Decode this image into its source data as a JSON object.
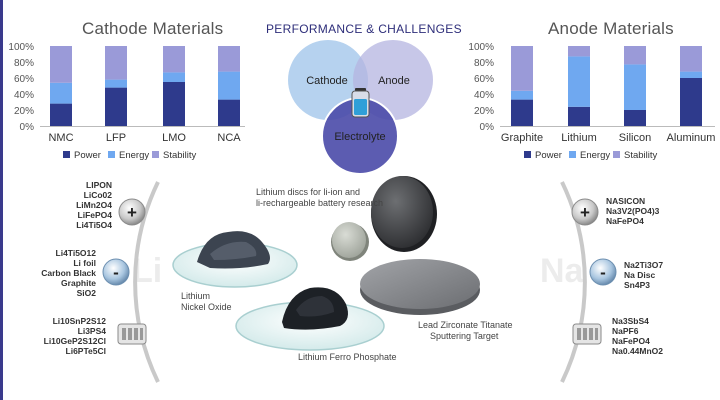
{
  "colors": {
    "power": "#2e3a8c",
    "energy": "#6fa8f0",
    "stability": "#9a9ad8",
    "cathode_circle": "#9ec3ea",
    "anode_circle": "#b4b4e0",
    "electrolyte_circle": "#4a4aa8",
    "accent": "#3a3a8c"
  },
  "cathode_chart": {
    "title": "Cathode Materials",
    "yticks": [
      "100%",
      "80%",
      "60%",
      "40%",
      "20%",
      "0%"
    ]
  },
  "anode_chart": {
    "title": "Anode Materials",
    "yticks": [
      "100%",
      "80%",
      "60%",
      "40%",
      "20%",
      "0%"
    ]
  },
  "legend": {
    "power": "Power",
    "energy": "Energy",
    "stability": "Stability"
  },
  "chart_data": [
    {
      "type": "bar",
      "stacked": true,
      "title": "Cathode Materials",
      "categories": [
        "NMC",
        "LFP",
        "LMO",
        "NCA"
      ],
      "series": [
        {
          "name": "Power",
          "values": [
            28,
            48,
            55,
            33
          ]
        },
        {
          "name": "Energy",
          "values": [
            26,
            10,
            12,
            35
          ]
        },
        {
          "name": "Stability",
          "values": [
            46,
            42,
            33,
            32
          ]
        }
      ],
      "ylim": [
        0,
        100
      ],
      "legend_position": "bottom"
    },
    {
      "type": "bar",
      "stacked": true,
      "title": "Anode Materials",
      "categories": [
        "Graphite",
        "Lithium",
        "Silicon",
        "Aluminum"
      ],
      "series": [
        {
          "name": "Power",
          "values": [
            33,
            24,
            20,
            60
          ]
        },
        {
          "name": "Energy",
          "values": [
            11,
            63,
            57,
            8
          ]
        },
        {
          "name": "Stability",
          "values": [
            56,
            13,
            23,
            32
          ]
        }
      ],
      "ylim": [
        0,
        100
      ],
      "legend_position": "bottom"
    }
  ],
  "venn": {
    "title": "PERFORMANCE & CHALLENGES",
    "cathode": "Cathode",
    "anode": "Anode",
    "electrolyte": "Electrolyte"
  },
  "left_arc": {
    "watermark": "Li",
    "plus_symbol": "+",
    "minus_symbol": "-",
    "cathode_list": [
      "LIPON",
      "LiCo02",
      "LiMn2O4",
      "LiFePO4",
      "Li4Ti5O4"
    ],
    "anode_list": [
      "Li4Ti5O12",
      "Li foil",
      "Carbon Black",
      "Graphite",
      "SiO2"
    ],
    "electrolyte_list": [
      "Li10SnP2S12",
      "Li3PS4",
      "Li10GeP2S12Cl",
      "Li6PTe5Cl"
    ]
  },
  "right_arc": {
    "watermark": "Na",
    "plus_symbol": "+",
    "minus_symbol": "-",
    "cathode_list": [
      "NASICON",
      "Na3V2(PO4)3",
      "NaFePO4"
    ],
    "anode_list": [
      "Na2Ti3O7",
      "Na Disc",
      "Sn4P3"
    ],
    "electrolyte_list": [
      "Na3SbS4",
      "NaPF6",
      "NaFePO4",
      "Na0.44MnO2"
    ]
  },
  "captions": {
    "discs": [
      "Lithium discs for li-ion and",
      "li-rechargeable battery research"
    ],
    "nickel_oxide": [
      "Lithium",
      "Nickel Oxide"
    ],
    "ferro_phosphate": "Lithium Ferro Phosphate",
    "target": [
      "Lead Zirconate Titanate",
      "Sputtering Target"
    ]
  }
}
